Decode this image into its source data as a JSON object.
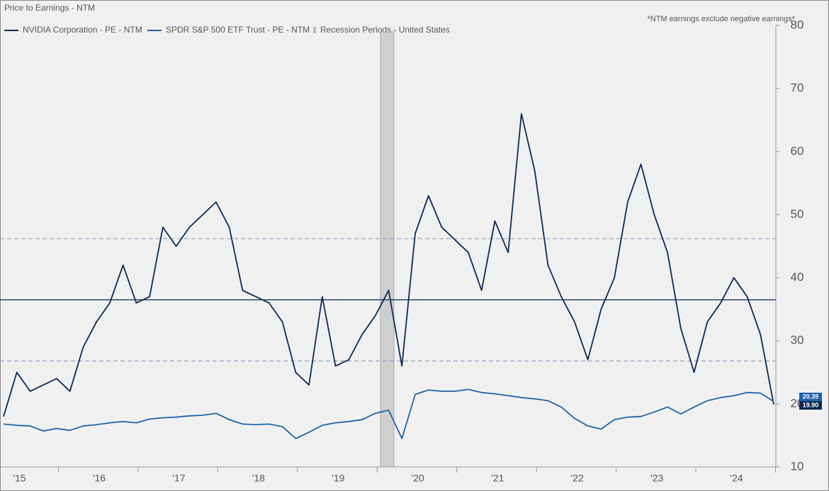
{
  "chart_data": {
    "type": "line",
    "title": "Price to Earnings - NTM",
    "note": "*NTM earnings exclude negative earnings*",
    "recession_label": "Recession Periods - United States",
    "categories": [
      null,
      null,
      "'15",
      null,
      null,
      null,
      null,
      null,
      "'16",
      null,
      null,
      null,
      null,
      null,
      "'17",
      null,
      null,
      null,
      null,
      null,
      "'18",
      null,
      null,
      null,
      null,
      null,
      "'19",
      null,
      null,
      null,
      null,
      null,
      "'20",
      null,
      null,
      null,
      null,
      null,
      "'21",
      null,
      null,
      null,
      null,
      null,
      "'22",
      null,
      null,
      null,
      null,
      null,
      "'23",
      null,
      null,
      null,
      null,
      null,
      "'24",
      null,
      null
    ],
    "series": [
      {
        "name": "NVIDIA Corporation - PE - NTM",
        "color": "#0d2a52",
        "last_label": "19.90",
        "values": [
          18,
          25,
          22,
          23,
          24,
          22,
          29,
          33,
          36,
          42,
          36,
          37,
          48,
          45,
          48,
          50,
          52,
          48,
          38,
          37,
          36,
          33,
          25,
          23,
          37,
          26,
          27,
          31,
          34,
          38,
          26,
          47,
          53,
          48,
          46,
          44,
          38,
          49,
          44,
          66,
          57,
          42,
          37,
          33,
          27,
          35,
          40,
          52,
          58,
          50,
          44,
          32,
          25,
          33,
          36,
          40,
          37,
          31,
          19.9
        ]
      },
      {
        "name": "SPDR S&P 500 ETF Trust - PE - NTM",
        "color": "#1f63a8",
        "last_label": "20.39",
        "values": [
          16.8,
          16.6,
          16.5,
          15.7,
          16.1,
          15.8,
          16.5,
          16.7,
          17.0,
          17.2,
          17.0,
          17.6,
          17.8,
          17.9,
          18.1,
          18.2,
          18.5,
          17.5,
          16.8,
          16.7,
          16.8,
          16.4,
          14.5,
          15.5,
          16.6,
          17.0,
          17.2,
          17.5,
          18.5,
          19.0,
          14.5,
          21.5,
          22.2,
          22.0,
          22.0,
          22.3,
          21.8,
          21.6,
          21.3,
          21.0,
          20.8,
          20.5,
          19.5,
          17.7,
          16.5,
          16.0,
          17.5,
          17.9,
          18.0,
          18.7,
          19.5,
          18.4,
          19.5,
          20.5,
          21.0,
          21.3,
          21.8,
          21.7,
          20.39
        ]
      }
    ],
    "reference_lines": [
      {
        "value": 36.5,
        "style": "solid",
        "color": "#0d2a52"
      },
      {
        "value": 46.2,
        "style": "dashed",
        "color": "#8ea2bf"
      },
      {
        "value": 26.8,
        "style": "dashed",
        "color": "#8ea2bf"
      }
    ],
    "ylim": [
      10,
      80
    ],
    "yticks": [
      10,
      20,
      30,
      40,
      50,
      60,
      70,
      80
    ],
    "y_axis_side": "right"
  }
}
